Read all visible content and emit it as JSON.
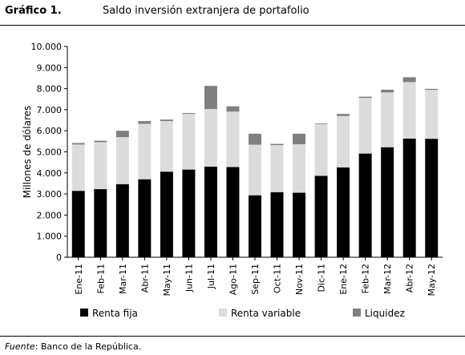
{
  "figure": {
    "label": "Gráfico 1.",
    "title": "Saldo inversión extranjera de portafolio"
  },
  "source": {
    "label": "Fuente",
    "text": ": Banco de la República."
  },
  "colors": {
    "renta_fija": "#000000",
    "renta_variable": "#dcdcdc",
    "liquidez": "#7f7f7f"
  },
  "chart_data": {
    "type": "bar",
    "stacked": true,
    "ylabel": "Millones de dólares",
    "ylim": [
      0,
      10000
    ],
    "yticks": [
      "0",
      "1.000",
      "2.000",
      "3.000",
      "4.000",
      "5.000",
      "6.000",
      "7.000",
      "8.000",
      "9.000",
      "10.000"
    ],
    "legend_position": "bottom",
    "categories": [
      "Ene-11",
      "Feb-11",
      "Mar-11",
      "Abr-11",
      "May-11",
      "Jun-11",
      "Jul-11",
      "Ago-11",
      "Sep-11",
      "Oct-11",
      "Nov-11",
      "Dic-11",
      "Ene-12",
      "Feb-12",
      "Mar-12",
      "Abr-12",
      "May-12"
    ],
    "series": [
      {
        "name": "Renta fija",
        "values": [
          3150,
          3230,
          3470,
          3700,
          4060,
          4160,
          4300,
          4280,
          2940,
          3090,
          3060,
          3860,
          4260,
          4920,
          5220,
          5630,
          5620
        ]
      },
      {
        "name": "Renta variable",
        "values": [
          2200,
          2230,
          2230,
          2630,
          2400,
          2640,
          2730,
          2630,
          2400,
          2230,
          2300,
          2460,
          2440,
          2640,
          2600,
          2680,
          2320
        ]
      },
      {
        "name": "Liquidez",
        "values": [
          70,
          70,
          300,
          130,
          70,
          40,
          1100,
          250,
          520,
          60,
          500,
          30,
          100,
          60,
          130,
          230,
          50
        ]
      }
    ]
  }
}
